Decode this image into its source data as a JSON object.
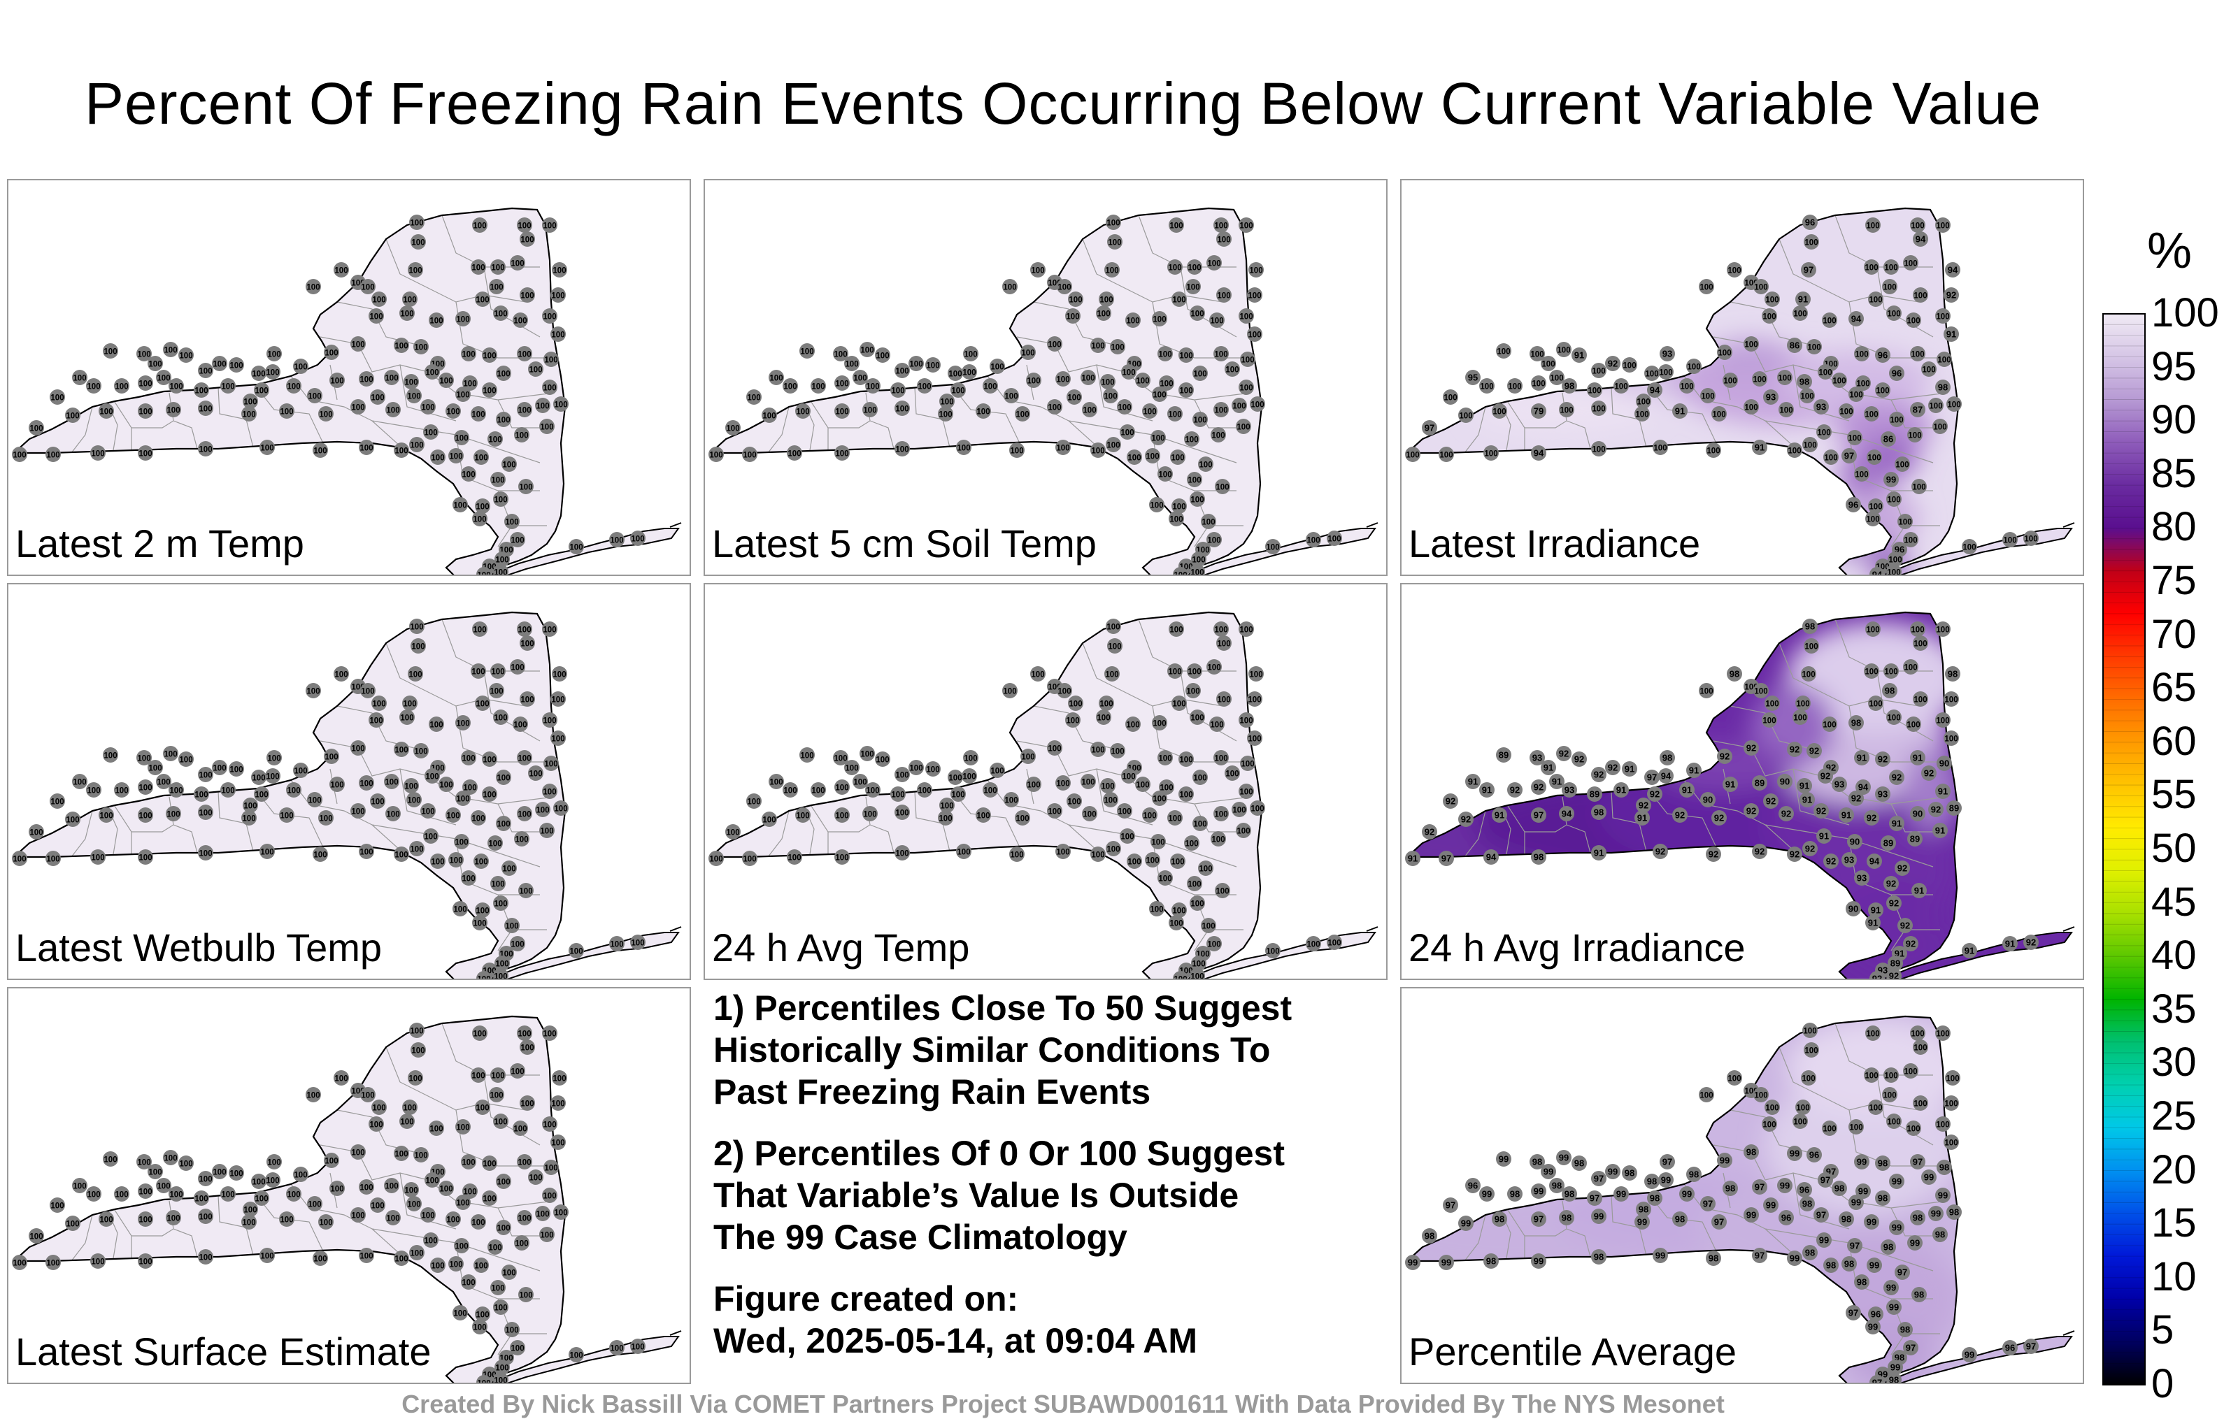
{
  "title": "Percent Of Freezing Rain Events Occurring Below Current Variable Value",
  "panels": [
    {
      "label": "Latest 2 m Temp",
      "shading": "uniform",
      "values": []
    },
    {
      "label": "Latest 5 cm Soil Temp",
      "shading": "uniform",
      "values": []
    },
    {
      "label": "Latest Irradiance",
      "shading": "irradiance",
      "values": [
        "96",
        "94",
        "97",
        "94",
        "91",
        "92",
        "94",
        "91",
        "91",
        "92",
        "93",
        "86",
        "96",
        "98",
        "98",
        "96",
        "93",
        "94",
        "98",
        "95",
        "79",
        "91",
        "93",
        "87",
        "86",
        "97",
        "99",
        "96"
      ]
    },
    {
      "label": "Latest Wetbulb Temp",
      "shading": "uniform",
      "values": []
    },
    {
      "label": "24 h Avg Temp",
      "shading": "uniform",
      "values": []
    },
    {
      "label": "24 h Avg Irradiance",
      "shading": "avg-irradiance",
      "values": [
        "92",
        "92",
        "92",
        "92",
        "92",
        "91",
        "92",
        "91",
        "90",
        "92",
        "91",
        "89",
        "89",
        "90",
        "91",
        "92",
        "93",
        "94",
        "92",
        "93",
        "92",
        "91",
        "92",
        "91",
        "90",
        "91",
        "92",
        "92",
        "91",
        "89",
        "93",
        "92",
        "92",
        "91",
        "91",
        "92",
        "92",
        "91",
        "97",
        "94",
        "98",
        "91"
      ]
    },
    {
      "label": "Latest Surface Estimate",
      "shading": "uniform",
      "values": []
    },
    {
      "label": "Percentile Average",
      "shading": "average",
      "values": [
        "99",
        "98",
        "99",
        "98",
        "97",
        "99",
        "98",
        "98",
        "99",
        "97",
        "98",
        "99",
        "98",
        "99",
        "96",
        "97",
        "99",
        "98",
        "97",
        "98",
        "99",
        "99",
        "98",
        "97",
        "99",
        "96",
        "97",
        "98",
        "99",
        "99",
        "98"
      ]
    }
  ],
  "station_default_value": "100",
  "notes": {
    "line1": "1) Percentiles Close To 50 Suggest",
    "line2": "Historically Similar Conditions To",
    "line3": "Past Freezing Rain Events",
    "line4": "2) Percentiles Of 0 Or 100 Suggest",
    "line5": "That Variable’s Value Is Outside",
    "line6": "The 99 Case Climatology",
    "line7": "Figure created on:",
    "line8": "Wed, 2025-05-14, at 09:04 AM"
  },
  "footer": "Created By Nick Bassill Via COMET Partners Project SUBAWD001611 With Data Provided By The NYS Mesonet",
  "colorbar": {
    "unit": "%",
    "ticks": [
      "100",
      "95",
      "90",
      "85",
      "80",
      "75",
      "70",
      "65",
      "60",
      "55",
      "50",
      "45",
      "40",
      "35",
      "30",
      "25",
      "20",
      "15",
      "10",
      "5",
      "0"
    ],
    "colors": [
      "#f0eaf4",
      "#d6c6e6",
      "#b79ad4",
      "#8e5cba",
      "#6a2ba0",
      "#5a0f8f",
      "#c00018",
      "#ff0000",
      "#ff3a00",
      "#ff6d00",
      "#ff9a00",
      "#ffc400",
      "#ffeb00",
      "#e0f000",
      "#a8e000",
      "#5cc800",
      "#00b400",
      "#00c070",
      "#00d0b0",
      "#00c8e8",
      "#0090f0",
      "#0050e8",
      "#0018d8",
      "#0000a8",
      "#000060",
      "#000000"
    ]
  }
}
